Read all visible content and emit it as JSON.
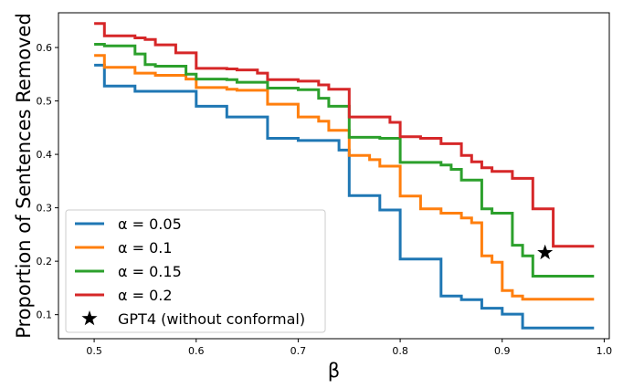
{
  "chart_data": {
    "type": "line",
    "title": "",
    "xlabel": "β",
    "ylabel": "Proportion of Sentences Removed",
    "xlim": [
      0.465,
      1.005
    ],
    "ylim": [
      0.055,
      0.665
    ],
    "xticks": [
      "0.5",
      "0.6",
      "0.7",
      "0.8",
      "0.9",
      "1.0"
    ],
    "yticks": [
      "0.1",
      "0.2",
      "0.3",
      "0.4",
      "0.5",
      "0.6"
    ],
    "grid": false,
    "legend_position": "lower-left",
    "series": [
      {
        "name": "α = 0.05",
        "color": "#1f77b4",
        "step": true,
        "x": [
          0.5,
          0.51,
          0.53,
          0.54,
          0.58,
          0.6,
          0.62,
          0.63,
          0.66,
          0.67,
          0.69,
          0.7,
          0.73,
          0.74,
          0.75,
          0.77,
          0.78,
          0.79,
          0.8,
          0.83,
          0.84,
          0.85,
          0.86,
          0.87,
          0.88,
          0.89,
          0.9,
          0.91,
          0.92,
          0.99
        ],
        "y": [
          0.567,
          0.528,
          0.528,
          0.518,
          0.518,
          0.49,
          0.49,
          0.47,
          0.47,
          0.43,
          0.43,
          0.426,
          0.426,
          0.408,
          0.323,
          0.323,
          0.296,
          0.296,
          0.204,
          0.204,
          0.135,
          0.135,
          0.128,
          0.128,
          0.112,
          0.112,
          0.101,
          0.101,
          0.075,
          0.075
        ]
      },
      {
        "name": "α = 0.1",
        "color": "#ff7f0e",
        "step": true,
        "x": [
          0.5,
          0.51,
          0.53,
          0.54,
          0.55,
          0.56,
          0.57,
          0.58,
          0.59,
          0.6,
          0.62,
          0.63,
          0.64,
          0.66,
          0.67,
          0.69,
          0.7,
          0.71,
          0.72,
          0.73,
          0.74,
          0.75,
          0.76,
          0.77,
          0.78,
          0.79,
          0.8,
          0.81,
          0.82,
          0.83,
          0.84,
          0.85,
          0.86,
          0.87,
          0.88,
          0.89,
          0.9,
          0.91,
          0.92,
          0.99
        ],
        "y": [
          0.585,
          0.563,
          0.563,
          0.552,
          0.552,
          0.548,
          0.548,
          0.548,
          0.541,
          0.525,
          0.525,
          0.522,
          0.52,
          0.52,
          0.494,
          0.494,
          0.47,
          0.47,
          0.462,
          0.445,
          0.445,
          0.398,
          0.398,
          0.39,
          0.378,
          0.378,
          0.322,
          0.322,
          0.298,
          0.298,
          0.29,
          0.29,
          0.281,
          0.272,
          0.21,
          0.198,
          0.145,
          0.135,
          0.129,
          0.129
        ]
      },
      {
        "name": "α = 0.15",
        "color": "#2ca02c",
        "step": true,
        "x": [
          0.5,
          0.51,
          0.53,
          0.54,
          0.55,
          0.56,
          0.57,
          0.58,
          0.59,
          0.6,
          0.62,
          0.63,
          0.64,
          0.66,
          0.67,
          0.69,
          0.7,
          0.71,
          0.72,
          0.73,
          0.74,
          0.75,
          0.76,
          0.77,
          0.78,
          0.79,
          0.8,
          0.83,
          0.84,
          0.85,
          0.86,
          0.87,
          0.88,
          0.89,
          0.9,
          0.91,
          0.92,
          0.93,
          0.99
        ],
        "y": [
          0.606,
          0.603,
          0.603,
          0.588,
          0.568,
          0.565,
          0.565,
          0.565,
          0.55,
          0.541,
          0.541,
          0.54,
          0.535,
          0.535,
          0.524,
          0.524,
          0.521,
          0.521,
          0.505,
          0.49,
          0.49,
          0.432,
          0.432,
          0.432,
          0.43,
          0.43,
          0.385,
          0.385,
          0.38,
          0.372,
          0.352,
          0.352,
          0.298,
          0.29,
          0.29,
          0.23,
          0.21,
          0.172,
          0.172
        ]
      },
      {
        "name": "α = 0.2",
        "color": "#d62728",
        "step": true,
        "x": [
          0.5,
          0.51,
          0.53,
          0.54,
          0.55,
          0.56,
          0.57,
          0.58,
          0.59,
          0.6,
          0.62,
          0.63,
          0.64,
          0.66,
          0.67,
          0.69,
          0.7,
          0.71,
          0.72,
          0.73,
          0.74,
          0.75,
          0.76,
          0.77,
          0.78,
          0.79,
          0.8,
          0.81,
          0.82,
          0.83,
          0.84,
          0.85,
          0.86,
          0.87,
          0.88,
          0.89,
          0.9,
          0.91,
          0.92,
          0.93,
          0.94,
          0.95,
          0.99
        ],
        "y": [
          0.645,
          0.622,
          0.622,
          0.618,
          0.615,
          0.605,
          0.605,
          0.59,
          0.59,
          0.561,
          0.561,
          0.56,
          0.558,
          0.552,
          0.54,
          0.54,
          0.537,
          0.537,
          0.53,
          0.522,
          0.522,
          0.47,
          0.47,
          0.47,
          0.47,
          0.46,
          0.433,
          0.433,
          0.43,
          0.43,
          0.42,
          0.42,
          0.398,
          0.386,
          0.375,
          0.368,
          0.368,
          0.355,
          0.355,
          0.298,
          0.298,
          0.228,
          0.228
        ]
      }
    ],
    "markers": [
      {
        "name": "GPT4 (without conformal)",
        "x": 0.942,
        "y": 0.216,
        "symbol": "star",
        "color": "#000000"
      }
    ]
  }
}
